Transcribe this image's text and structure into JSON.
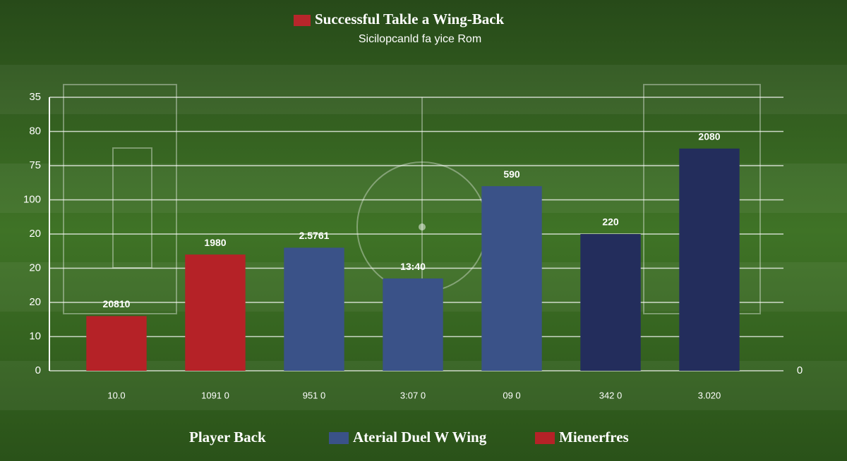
{
  "chart_data": {
    "type": "bar",
    "title": "Successful Takle a Wing-Back",
    "title_color": "#b8262b",
    "subtitle": "Sicilopcanld fa yice Rom",
    "categories": [
      "10.0",
      "1091 0",
      "951 0",
      "3:07 0",
      "09 0",
      "342 0",
      "3.020"
    ],
    "values": [
      16,
      34,
      36,
      27,
      54,
      40,
      65
    ],
    "colors": [
      "#b52227",
      "#b52227",
      "#3a5288",
      "#3a5288",
      "#3a5288",
      "#232d5c",
      "#232d5c"
    ],
    "annotations": [
      "20810",
      "1980",
      "2.5761",
      "13:40",
      "590",
      "220",
      "2080"
    ],
    "ylim": [
      0,
      80
    ],
    "yticks": [
      0,
      10,
      20,
      {
        "value": 30,
        "label": "20"
      },
      {
        "value": 40,
        "label": "20"
      },
      {
        "value": 50,
        "label": "100"
      },
      {
        "value": 60,
        "label": "75"
      },
      {
        "value": 70,
        "label": "80"
      },
      {
        "value": 80,
        "label": "35"
      }
    ],
    "y2lim": [
      0,
      80
    ],
    "y2ticks": [
      0
    ],
    "grid": true,
    "legend": [
      {
        "name": "Player Back"
      },
      {
        "name": "Aterial Duel W Wing",
        "color": "#3a5288"
      },
      {
        "name": "Mienerfres",
        "color": "#b52227"
      }
    ]
  }
}
